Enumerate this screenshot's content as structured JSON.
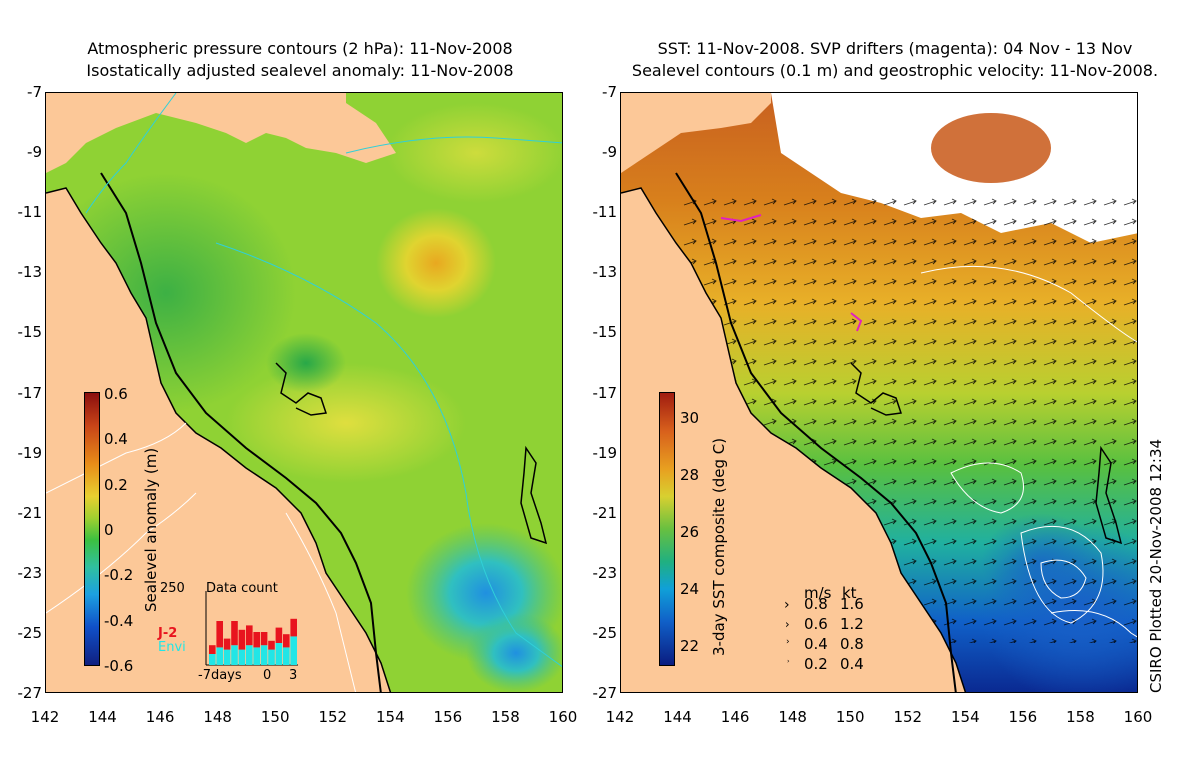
{
  "left_panel": {
    "title_line1": "Atmospheric pressure contours (2 hPa): 11-Nov-2008",
    "title_line2": "Isostatically adjusted sealevel anomaly: 11-Nov-2008",
    "colorbar": {
      "label": "Sealevel anomaly (m)",
      "ticks": [
        "0.6",
        "0.4",
        "0.2",
        "0",
        "-0.2",
        "-0.4",
        "-0.6"
      ]
    },
    "inset": {
      "title": "Data count",
      "ymax_label": "250",
      "series": [
        {
          "name": "J-2",
          "color": "#e8141e"
        },
        {
          "name": "Envi",
          "color": "#22e6e6"
        }
      ],
      "x_labels": [
        "-7days",
        "0",
        "3"
      ]
    }
  },
  "right_panel": {
    "title_line1": "SST: 11-Nov-2008. SVP drifters (magenta): 04 Nov - 13 Nov",
    "title_line2": "Sealevel contours (0.1 m) and geostrophic velocity: 11-Nov-2008.",
    "colorbar": {
      "label": "3-day SST composite (deg C)",
      "ticks": [
        "30",
        "28",
        "26",
        "24",
        "22"
      ]
    },
    "velocity_legend": {
      "header_ms": "m/s",
      "header_kt": "kt",
      "rows": [
        {
          "ms": "0.8",
          "kt": "1.6"
        },
        {
          "ms": "0.6",
          "kt": "1.2"
        },
        {
          "ms": "0.4",
          "kt": "0.8"
        },
        {
          "ms": "0.2",
          "kt": "0.4"
        }
      ]
    }
  },
  "axes": {
    "lat_labels": [
      "-7",
      "-9",
      "-11",
      "-13",
      "-15",
      "-17",
      "-19",
      "-21",
      "-23",
      "-25",
      "-27"
    ],
    "lon_labels": [
      "142",
      "144",
      "146",
      "148",
      "150",
      "152",
      "154",
      "156",
      "158",
      "160"
    ]
  },
  "credit": "CSIRO Plotted 20-Nov-2008 12:34",
  "colors": {
    "land": "#fcc898",
    "sla_green": "#5cc838",
    "sla_yellow": "#d4e23a",
    "sst_orange": "#d8781a",
    "sst_green": "#58c040",
    "sst_blue": "#1060c8",
    "contour_cyan": "#30d0d8",
    "drifter_magenta": "#e020c0"
  }
}
